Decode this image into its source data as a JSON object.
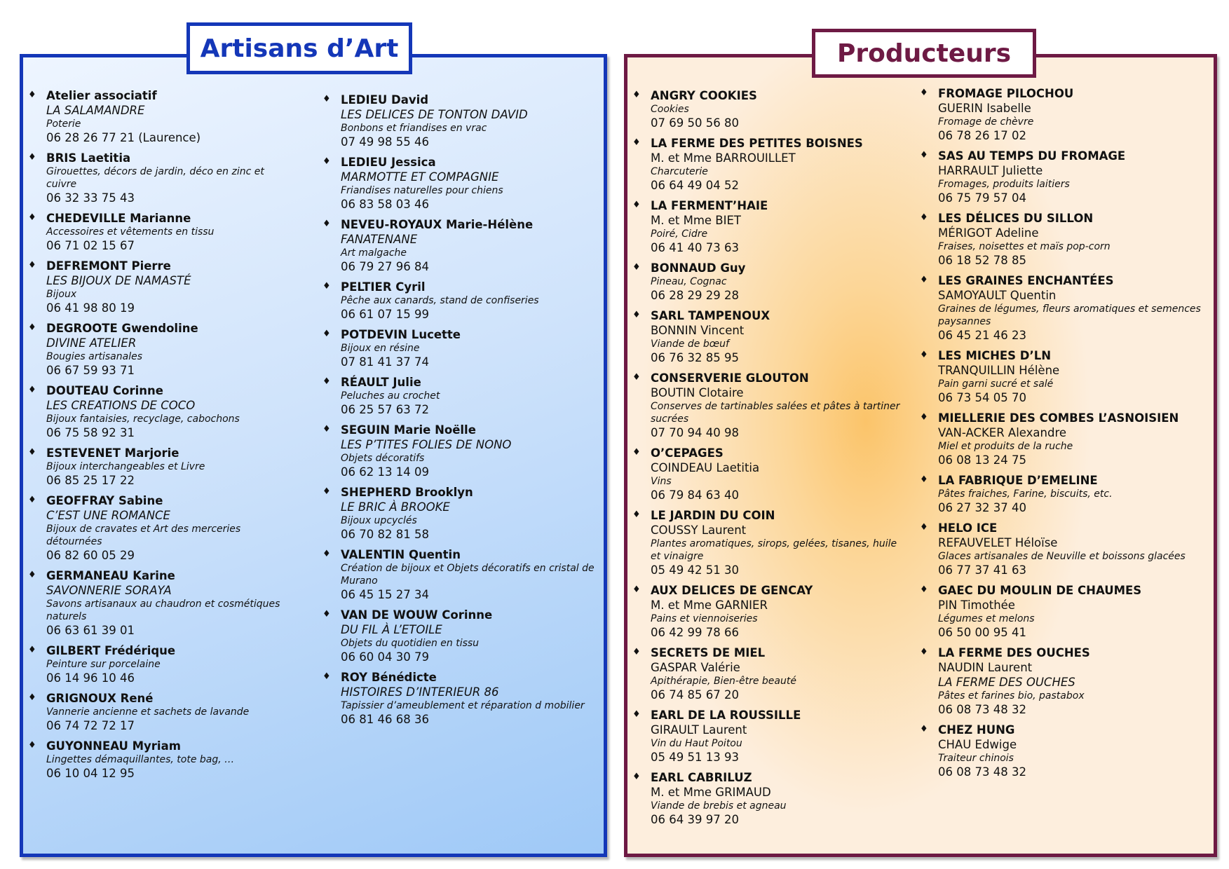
{
  "artisans": {
    "title": "Artisans d’Art",
    "col1": [
      {
        "name": "Atelier associatif",
        "business": "LA SALAMANDRE",
        "desc": "Poterie",
        "phone": "06 28 26 77 21 (Laurence)"
      },
      {
        "name": "BRIS Laetitia",
        "desc": "Girouettes, décors de jardin, déco en zinc et cuivre",
        "phone": "06 32 33 75 43"
      },
      {
        "name": "CHEDEVILLE Marianne",
        "desc": "Accessoires et vêtements en tissu",
        "phone": "06 71 02 15 67"
      },
      {
        "name": "DEFREMONT Pierre",
        "business": "LES BIJOUX DE NAMASTÉ",
        "desc": "Bijoux",
        "phone": "06 41 98 80 19"
      },
      {
        "name": "DEGROOTE Gwendoline",
        "business": "DIVINE ATELIER",
        "desc": "Bougies artisanales",
        "phone": "06 67 59 93 71"
      },
      {
        "name": "DOUTEAU Corinne",
        "business": "LES CREATIONS DE COCO",
        "desc": "Bijoux fantaisies, recyclage, cabochons",
        "phone": "06 75 58 92 31"
      },
      {
        "name": "ESTEVENET Marjorie",
        "desc": "Bijoux interchangeables et Livre",
        "phone": "06 85 25 17 22"
      },
      {
        "name": "GEOFFRAY Sabine",
        "business": "C’EST UNE ROMANCE",
        "desc": "Bijoux de cravates et Art des merceries détournées",
        "phone": "06 82 60 05 29"
      },
      {
        "name": "GERMANEAU Karine",
        "business": "SAVONNERIE SORAYA",
        "desc": "Savons artisanaux au chaudron et cosmétiques naturels",
        "phone": "06 63 61 39 01"
      },
      {
        "name": "GILBERT Frédérique",
        "desc": "Peinture sur porcelaine",
        "phone": "06 14 96 10 46"
      },
      {
        "name": "GRIGNOUX René",
        "desc": "Vannerie ancienne et sachets de lavande",
        "phone": "06 74 72 72 17"
      },
      {
        "name": "GUYONNEAU Myriam",
        "desc": "Lingettes démaquillantes, tote bag, …",
        "phone": "06 10 04 12 95"
      }
    ],
    "col2": [
      {
        "name": "LEDIEU David",
        "business": "LES DELICES DE TONTON DAVID",
        "desc": "Bonbons et friandises en vrac",
        "phone": "07 49 98 55 46"
      },
      {
        "name": "LEDIEU Jessica",
        "business": "MARMOTTE ET COMPAGNIE",
        "desc": "Friandises naturelles pour chiens",
        "phone": "06 83 58 03 46"
      },
      {
        "name": "NEVEU-ROYAUX Marie-Hélène",
        "business": "FANATENANE",
        "desc": "Art malgache",
        "phone": "06 79 27 96 84"
      },
      {
        "name": "PELTIER Cyril",
        "desc": "Pêche aux canards, stand de confiseries",
        "phone": "06 61 07 15 99"
      },
      {
        "name": "POTDEVIN Lucette",
        "desc": "Bijoux en résine",
        "phone": "07 81 41 37 74"
      },
      {
        "name": "RÉAULT Julie",
        "desc": "Peluches au crochet",
        "phone": "06 25 57 63 72"
      },
      {
        "name": "SEGUIN Marie Noëlle",
        "business": "LES P’TITES FOLIES DE NONO",
        "desc": "Objets décoratifs",
        "phone": "06 62 13 14 09"
      },
      {
        "name": "SHEPHERD Brooklyn",
        "business": "LE BRIC À BROOKE",
        "desc": "Bijoux upcyclés",
        "phone": "06 70 82 81 58"
      },
      {
        "name": "VALENTIN Quentin",
        "desc": "Création de bijoux et Objets décoratifs en cristal de Murano",
        "phone": "06 45 15 27 34"
      },
      {
        "name": "VAN DE WOUW Corinne",
        "business": "DU FIL À L’ETOILE",
        "desc": "Objets du quotidien en tissu",
        "phone": "06 60 04 30 79"
      },
      {
        "name": "ROY Bénédicte",
        "business": "HISTOIRES D’INTERIEUR 86",
        "desc": "Tapissier d’ameublement et réparation d mobilier",
        "phone": "06 81 46 68 36"
      }
    ]
  },
  "producteurs": {
    "title": "Producteurs",
    "col1": [
      {
        "name": "ANGRY COOKIES",
        "desc": "Cookies",
        "phone": "07 69 50 56 80"
      },
      {
        "name": "LA FERME DES PETITES BOISNES",
        "person": "M. et Mme BARROUILLET",
        "desc": "Charcuterie",
        "phone": "06 64 49 04 52"
      },
      {
        "name": "LA FERMENT’HAIE",
        "person": "M. et Mme BIET",
        "desc": "Poiré, Cidre",
        "phone": "06 41 40 73 63"
      },
      {
        "name": "BONNAUD Guy",
        "desc": "Pineau, Cognac",
        "phone": "06 28 29 29 28"
      },
      {
        "name": "SARL TAMPENOUX",
        "person": "BONNIN Vincent",
        "desc": "Viande de bœuf",
        "phone": "06 76 32 85 95"
      },
      {
        "name": "CONSERVERIE GLOUTON",
        "person": "BOUTIN Clotaire",
        "desc": "Conserves de tartinables salées et pâtes à tartiner sucrées",
        "phone": "07 70 94 40 98"
      },
      {
        "name": "O’CEPAGES",
        "person": "COINDEAU Laetitia",
        "desc": "Vins",
        "phone": "06 79 84 63 40"
      },
      {
        "name": "LE JARDIN DU COIN",
        "person": "COUSSY Laurent",
        "desc": "Plantes aromatiques, sirops, gelées, tisanes, huile et vinaigre",
        "phone": "05 49 42 51 30"
      },
      {
        "name": "AUX DELICES DE GENCAY",
        "person": "M. et Mme GARNIER",
        "desc": "Pains et viennoiseries",
        "phone": "06 42 99 78 66"
      },
      {
        "name": "SECRETS DE MIEL",
        "person": "GASPAR Valérie",
        "desc": "Apithérapie, Bien-être beauté",
        "phone": "06 74 85 67 20"
      },
      {
        "name": "EARL DE LA ROUSSILLE",
        "person": "GIRAULT Laurent",
        "desc": "Vin du Haut Poitou",
        "phone": "05 49 51 13 93"
      },
      {
        "name": "EARL CABRILUZ",
        "person": "M. et Mme GRIMAUD",
        "desc": "Viande de brebis et agneau",
        "phone": "06 64 39 97 20"
      }
    ],
    "col2": [
      {
        "name": "FROMAGE PILOCHOU",
        "person": "GUERIN Isabelle",
        "desc": "Fromage de chèvre",
        "phone": "06 78 26 17 02"
      },
      {
        "name": "SAS AU TEMPS DU FROMAGE",
        "person": "HARRAULT Juliette",
        "desc": "Fromages, produits laitiers",
        "phone": "06 75 79 57 04"
      },
      {
        "name": "LES DÉLICES DU SILLON",
        "person": "MÉRIGOT Adeline",
        "desc": "Fraises, noisettes et maïs pop-corn",
        "phone": "06 18 52 78 85"
      },
      {
        "name": "LES GRAINES ENCHANTÉES",
        "person": "SAMOYAULT Quentin",
        "desc": "Graines de légumes, fleurs aromatiques et semences paysannes",
        "phone": "06 45 21 46 23"
      },
      {
        "name": "LES MICHES D’LN",
        "person": "TRANQUILLIN Hélène",
        "desc": "Pain garni sucré et salé",
        "phone": "06 73 54 05 70"
      },
      {
        "name": "MIELLERIE DES COMBES L’ASNOISIEN",
        "person": "VAN-ACKER Alexandre",
        "desc": "Miel et produits de la ruche",
        "phone": "06 08 13 24 75"
      },
      {
        "name": "LA FABRIQUE D’EMELINE",
        "desc": "Pâtes fraiches, Farine, biscuits, etc.",
        "phone": "06 27 32 37 40"
      },
      {
        "name": "HELO ICE",
        "person": "REFAUVELET Héloïse",
        "desc": "Glaces artisanales de Neuville et boissons glacées",
        "phone": "06 77 37 41 63"
      },
      {
        "name": "GAEC DU MOULIN DE CHAUMES",
        "person": "PIN Timothée",
        "desc": "Légumes et melons",
        "phone": "06 50 00 95 41"
      },
      {
        "name": "LA FERME DES OUCHES",
        "person": "NAUDIN Laurent",
        "business": "LA FERME DES OUCHES",
        "desc": "Pâtes et farines bio, pastabox",
        "phone": "06 08 73 48 32"
      },
      {
        "name": "CHEZ HUNG",
        "person": "CHAU Edwige",
        "desc": "Traiteur chinois",
        "phone": "06 08 73 48 32"
      }
    ]
  }
}
